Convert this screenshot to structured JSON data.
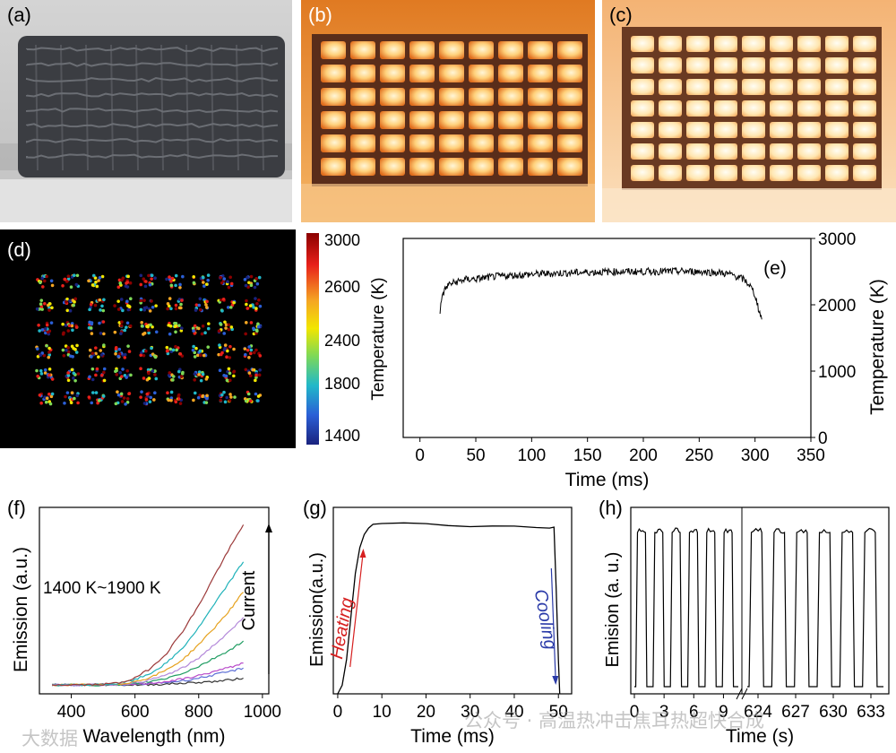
{
  "panel_labels": {
    "a": "(a)",
    "b": "(b)",
    "c": "(c)",
    "d": "(d)",
    "e": "(e)",
    "f": "(f)",
    "g": "(g)",
    "h": "(h)"
  },
  "colorbar": {
    "title": "Temperature (K)",
    "ticks": [
      "3000",
      "2600",
      "2400",
      "1800",
      "1400"
    ],
    "colors": [
      "#8b0000",
      "#e8201a",
      "#f5a623",
      "#f2e600",
      "#7ed957",
      "#21b8c9",
      "#2b5fd6",
      "#1a237e"
    ]
  },
  "watermark": {
    "left": "大数据",
    "right": "公众号 · 高温热冲击焦耳热超快合成"
  },
  "chart_data": [
    {
      "id": "e",
      "type": "line",
      "xlabel": "Time (ms)",
      "ylabel": "Temperature (K)",
      "xlim": [
        -15,
        350
      ],
      "ylim": [
        0,
        3000
      ],
      "xticks": [
        0,
        50,
        100,
        150,
        200,
        250,
        300,
        350
      ],
      "yticks": [
        0,
        1000,
        2000,
        3000
      ],
      "x": [
        18,
        20,
        25,
        30,
        40,
        50,
        70,
        100,
        130,
        150,
        180,
        200,
        230,
        250,
        270,
        280,
        290,
        295,
        300,
        303,
        306
      ],
      "y": [
        1900,
        2150,
        2300,
        2330,
        2380,
        2390,
        2430,
        2460,
        2480,
        2490,
        2500,
        2500,
        2505,
        2500,
        2480,
        2450,
        2380,
        2300,
        2150,
        1950,
        1780
      ],
      "grid": false
    },
    {
      "id": "f",
      "type": "line",
      "xlabel": "Wavelength (nm)",
      "ylabel": "Emission (a.u.)",
      "xlim": [
        300,
        1020
      ],
      "xticks": [
        400,
        600,
        800,
        1000
      ],
      "annotation": "1400 K~1900 K",
      "arrow_label": "Current",
      "x": [
        340,
        400,
        450,
        500,
        550,
        600,
        650,
        700,
        750,
        800,
        850,
        900,
        940
      ],
      "series": [
        {
          "color": "#333333",
          "values": [
            0,
            0,
            0,
            0,
            0,
            0,
            0.002,
            0.005,
            0.01,
            0.015,
            0.02,
            0.03,
            0.04
          ]
        },
        {
          "color": "#5d6fd6",
          "values": [
            0,
            0,
            0,
            0,
            0,
            0.003,
            0.008,
            0.015,
            0.025,
            0.04,
            0.06,
            0.08,
            0.1
          ]
        },
        {
          "color": "#b84ac9",
          "values": [
            0,
            0,
            0,
            0,
            0,
            0.004,
            0.01,
            0.02,
            0.035,
            0.055,
            0.08,
            0.105,
            0.13
          ]
        },
        {
          "color": "#1f9d62",
          "values": [
            0,
            0,
            0,
            0,
            0.002,
            0.008,
            0.02,
            0.04,
            0.07,
            0.11,
            0.16,
            0.21,
            0.26
          ]
        },
        {
          "color": "#b388d9",
          "values": [
            0,
            0,
            0,
            0,
            0.003,
            0.012,
            0.03,
            0.06,
            0.1,
            0.16,
            0.24,
            0.32,
            0.4
          ]
        },
        {
          "color": "#e6a21e",
          "values": [
            0,
            0,
            0,
            0.001,
            0.005,
            0.02,
            0.045,
            0.09,
            0.15,
            0.24,
            0.34,
            0.45,
            0.55
          ]
        },
        {
          "color": "#1fb2b9",
          "values": [
            0,
            0,
            0,
            0.002,
            0.008,
            0.03,
            0.07,
            0.13,
            0.22,
            0.34,
            0.48,
            0.62,
            0.73
          ]
        },
        {
          "color": "#9c3a3a",
          "values": [
            0,
            0,
            0,
            0.003,
            0.012,
            0.04,
            0.1,
            0.19,
            0.32,
            0.47,
            0.65,
            0.82,
            0.95
          ]
        }
      ]
    },
    {
      "id": "g",
      "type": "line",
      "xlabel": "Time (ms)",
      "ylabel": "Emission(a.u.)",
      "xlim": [
        -1,
        53
      ],
      "xticks": [
        0,
        10,
        20,
        30,
        40,
        50
      ],
      "heating_label": "Heating",
      "cooling_label": "Cooling",
      "x": [
        0,
        1,
        2,
        3,
        4,
        5,
        6,
        7,
        8,
        10,
        15,
        20,
        25,
        30,
        35,
        40,
        45,
        48,
        49,
        49.5,
        50,
        50.3
      ],
      "y": [
        0,
        0.05,
        0.2,
        0.45,
        0.7,
        0.85,
        0.93,
        0.96,
        0.98,
        0.99,
        0.99,
        0.985,
        0.98,
        0.975,
        0.975,
        0.97,
        0.97,
        0.965,
        0.965,
        0.6,
        0.2,
        0
      ]
    },
    {
      "id": "h",
      "type": "line",
      "xlabel": "Time (s)",
      "ylabel": "Emision (a. u.)",
      "xticks": [
        "0",
        "3",
        "6",
        "9",
        "624",
        "627",
        "630",
        "633"
      ],
      "cycles_left": 6,
      "cycles_right": 6,
      "period_s": 3
    }
  ]
}
